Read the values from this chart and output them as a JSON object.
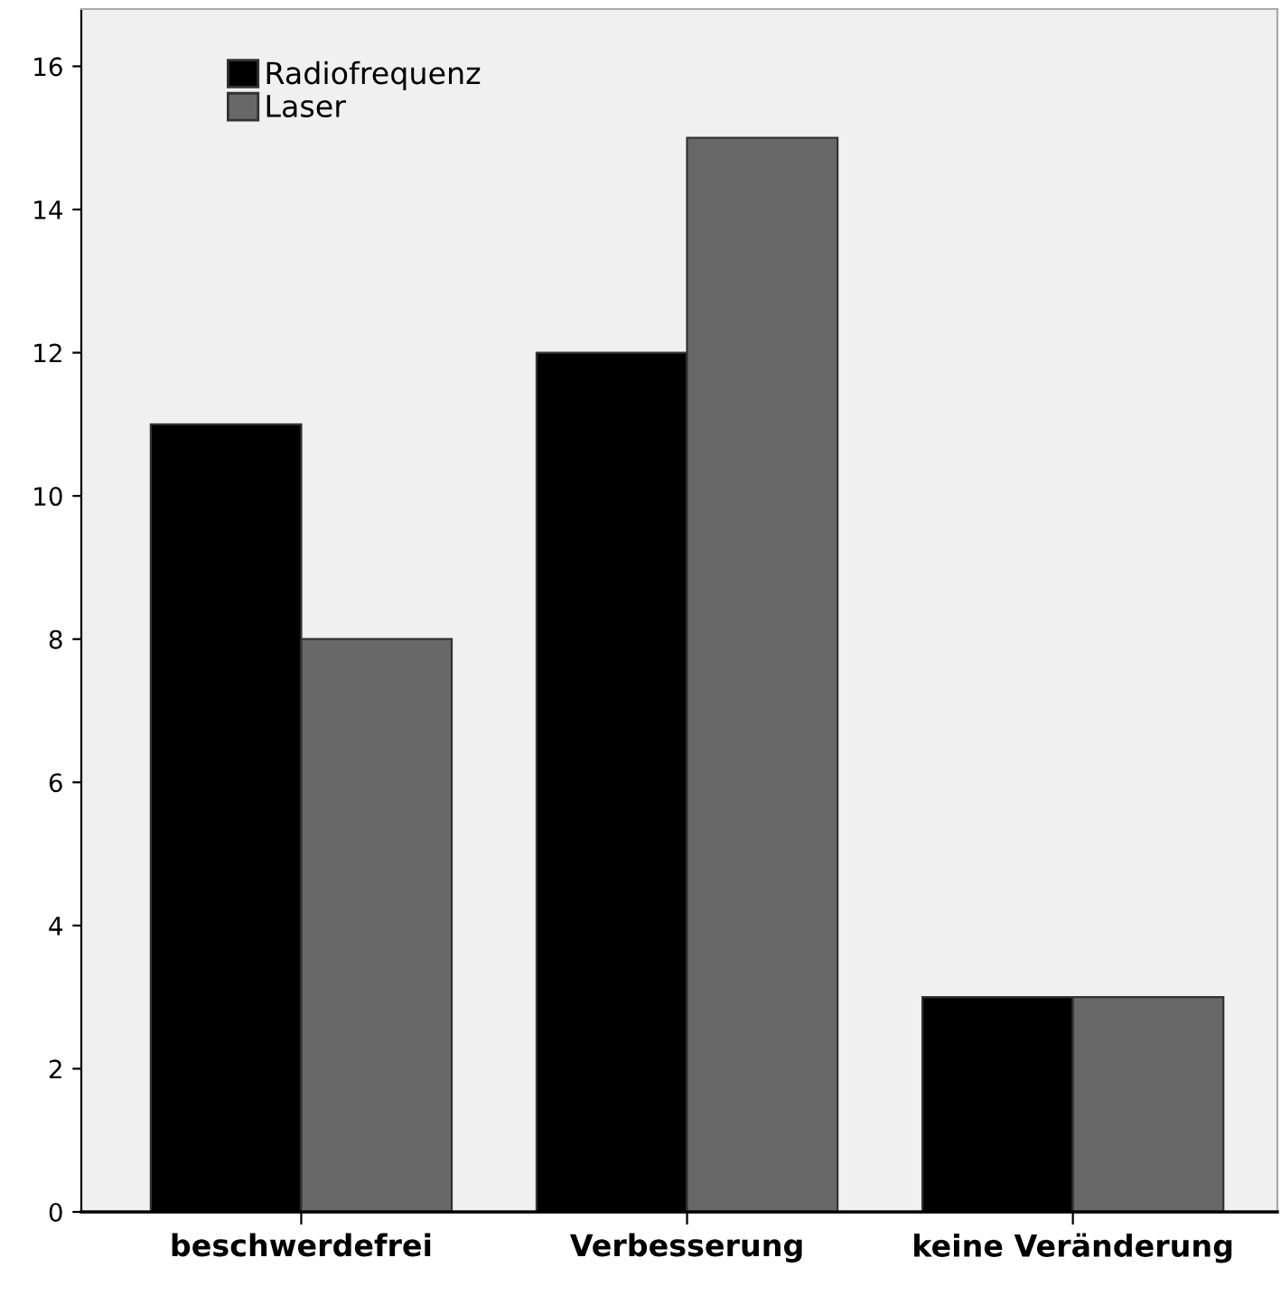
{
  "chart_data": {
    "type": "bar",
    "categories": [
      "beschwerdefrei",
      "Verbesserung",
      "keine Veränderung"
    ],
    "series": [
      {
        "name": "Radiofrequenz",
        "color": "#000000",
        "values": [
          11,
          12,
          3
        ]
      },
      {
        "name": "Laser",
        "color": "#686868",
        "values": [
          8,
          15,
          3
        ]
      }
    ],
    "ylim": [
      0,
      16.8
    ],
    "yticks": [
      0,
      2,
      4,
      6,
      8,
      10,
      12,
      14,
      16
    ],
    "grid": false,
    "legend": "top left"
  }
}
